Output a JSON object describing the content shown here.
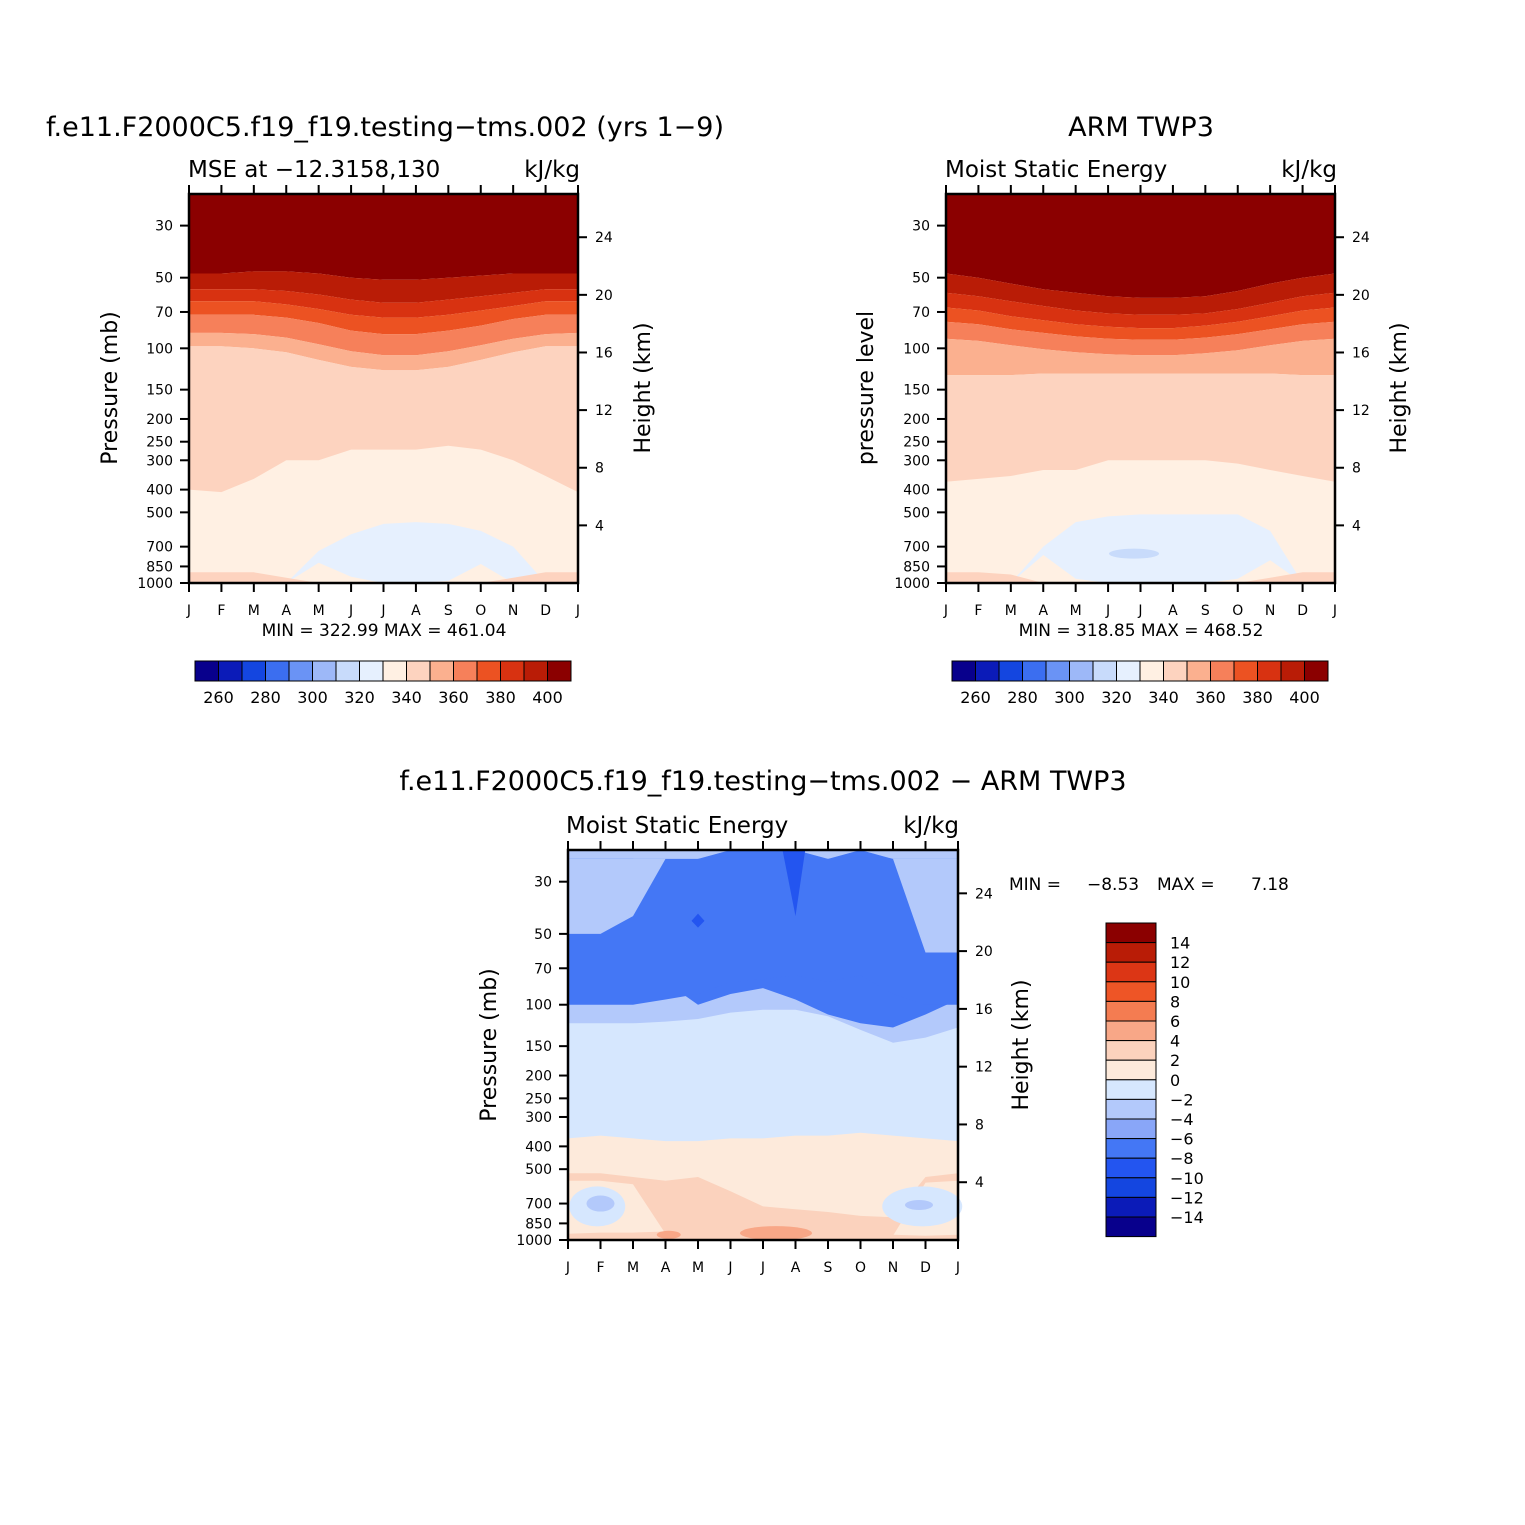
{
  "colors": {
    "mse_scale": [
      "#08008c",
      "#0b1bb8",
      "#1446e0",
      "#3b6ef0",
      "#6a93f5",
      "#9db8f8",
      "#c8dbfb",
      "#e6f0fe",
      "#fff0e3",
      "#fdd3bf",
      "#fbb08f",
      "#f6805a",
      "#ec5222",
      "#d83211",
      "#b91c06",
      "#8b0000"
    ],
    "diff_scale": [
      "#08008c",
      "#0b1bb8",
      "#1446e0",
      "#2355f0",
      "#4477f5",
      "#89a6f8",
      "#b3c9fb",
      "#d6e7fe",
      "#fdeadb",
      "#fbd2bd",
      "#f8a787",
      "#f47c51",
      "#ee5526",
      "#dc3615",
      "#b91c06",
      "#8b0000"
    ]
  },
  "chart_data": [
    {
      "id": "model",
      "type": "contour",
      "title": "f.e11.F2000C5.f19_f19.testing−tms.002 (yrs 1−9)",
      "subtitle_left": "MSE at −12.3158,130",
      "subtitle_right": "kJ/kg",
      "ylabel": "Pressure (mb)",
      "ylabel_right": "Height (km)",
      "months": [
        "J",
        "F",
        "M",
        "A",
        "M",
        "J",
        "J",
        "A",
        "S",
        "O",
        "N",
        "D",
        "J"
      ],
      "pressure_ticks": [
        "30",
        "50",
        "70",
        "100",
        "150",
        "200",
        "250",
        "300",
        "400",
        "500",
        "700",
        "850",
        "1000"
      ],
      "height_ticks": [
        "24",
        "20",
        "16",
        "12",
        "8",
        "4"
      ],
      "stats": "MIN =  322.99  MAX =  461.04",
      "colorbar_labels": [
        "260",
        "280",
        "300",
        "320",
        "340",
        "360",
        "380",
        "400"
      ],
      "contour_levels_mb": {
        "c400": [
          48,
          48,
          47,
          47,
          48,
          50,
          51,
          51,
          50,
          49,
          48,
          48,
          48
        ],
        "c390": [
          56,
          56,
          56,
          57,
          59,
          62,
          64,
          64,
          62,
          60,
          58,
          56,
          56
        ],
        "c380": [
          63,
          63,
          63,
          65,
          68,
          72,
          74,
          74,
          72,
          69,
          66,
          63,
          63
        ],
        "c370": [
          72,
          72,
          72,
          74,
          78,
          84,
          87,
          87,
          84,
          80,
          75,
          72,
          72
        ],
        "c360": [
          86,
          86,
          87,
          90,
          96,
          103,
          107,
          107,
          103,
          97,
          91,
          87,
          86
        ],
        "c350": [
          98,
          98,
          100,
          104,
          112,
          120,
          124,
          124,
          120,
          112,
          104,
          98,
          98
        ],
        "c340": [
          400,
          410,
          360,
          300,
          300,
          270,
          270,
          270,
          260,
          270,
          300,
          350,
          410
        ],
        "c330_top": [
          1000,
          1000,
          1000,
          1000,
          730,
          620,
          560,
          550,
          560,
          600,
          700,
          1000,
          1000
        ],
        "c330_bot": [
          1000,
          1000,
          1000,
          1000,
          820,
          940,
          1000,
          1000,
          980,
          830,
          1000,
          1000,
          1000
        ],
        "c340_bot": [
          900,
          900,
          900,
          950,
          1000,
          1000,
          1000,
          1000,
          1000,
          1000,
          950,
          900,
          900
        ]
      }
    },
    {
      "id": "obs",
      "type": "contour",
      "title": "ARM TWP3",
      "subtitle_left": "Moist Static Energy",
      "subtitle_right": "kJ/kg",
      "ylabel": "pressure level",
      "ylabel_right": "Height (km)",
      "months": [
        "J",
        "F",
        "M",
        "A",
        "M",
        "J",
        "J",
        "A",
        "S",
        "O",
        "N",
        "D",
        "J"
      ],
      "pressure_ticks": [
        "30",
        "50",
        "70",
        "100",
        "150",
        "200",
        "250",
        "300",
        "400",
        "500",
        "700",
        "850",
        "1000"
      ],
      "height_ticks": [
        "24",
        "20",
        "16",
        "12",
        "8",
        "4"
      ],
      "stats": "MIN =  318.85  MAX =  468.52",
      "colorbar_labels": [
        "260",
        "280",
        "300",
        "320",
        "340",
        "360",
        "380",
        "400"
      ],
      "contour_levels_mb": {
        "c400": [
          48,
          50,
          53,
          56,
          58,
          60,
          61,
          61,
          60,
          57,
          53,
          50,
          48
        ],
        "c390": [
          58,
          60,
          63,
          66,
          69,
          71,
          72,
          72,
          71,
          68,
          64,
          60,
          58
        ],
        "c380": [
          67,
          69,
          73,
          76,
          79,
          81,
          82,
          82,
          80,
          77,
          73,
          69,
          67
        ],
        "c370": [
          77,
          79,
          83,
          86,
          89,
          91,
          92,
          92,
          90,
          87,
          83,
          79,
          77
        ],
        "c360": [
          91,
          93,
          97,
          101,
          104,
          106,
          107,
          107,
          105,
          102,
          97,
          93,
          91
        ],
        "c350": [
          130,
          130,
          130,
          128,
          128,
          128,
          128,
          128,
          128,
          128,
          128,
          130,
          130
        ],
        "c340": [
          370,
          360,
          350,
          330,
          330,
          300,
          300,
          300,
          300,
          310,
          330,
          350,
          370
        ],
        "c330_top": [
          1000,
          1000,
          1000,
          700,
          550,
          520,
          510,
          510,
          510,
          510,
          600,
          1000,
          1000
        ],
        "c330_bot": [
          1000,
          1000,
          1000,
          760,
          960,
          1000,
          1000,
          1000,
          1000,
          960,
          800,
          1000,
          1000
        ],
        "c340_bot": [
          900,
          900,
          920,
          1000,
          1000,
          1000,
          1000,
          1000,
          1000,
          1000,
          950,
          900,
          900
        ]
      }
    },
    {
      "id": "diff",
      "type": "contour",
      "title": "f.e11.F2000C5.f19_f19.testing−tms.002 − ARM TWP3",
      "subtitle_left": "Moist Static Energy",
      "subtitle_right": "kJ/kg",
      "ylabel": "Pressure (mb)",
      "ylabel_right": "Height (km)",
      "months": [
        "J",
        "F",
        "M",
        "A",
        "M",
        "J",
        "J",
        "A",
        "S",
        "O",
        "N",
        "D",
        "J"
      ],
      "pressure_ticks": [
        "30",
        "50",
        "70",
        "100",
        "150",
        "200",
        "250",
        "300",
        "400",
        "500",
        "700",
        "850",
        "1000"
      ],
      "height_ticks": [
        "24",
        "20",
        "16",
        "12",
        "8",
        "4"
      ],
      "stats_min": "MIN =",
      "stats_min_val": "−8.53",
      "stats_max": "MAX =",
      "stats_max_val": "7.18",
      "colorbar_labels": [
        "14",
        "12",
        "10",
        "8",
        "6",
        "4",
        "2",
        "0",
        "−2",
        "−4",
        "−6",
        "−8",
        "−10",
        "−12",
        "−14"
      ]
    }
  ]
}
